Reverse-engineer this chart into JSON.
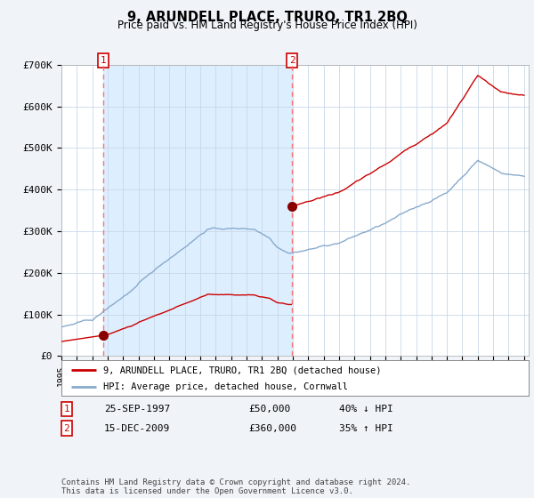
{
  "title": "9, ARUNDELL PLACE, TRURO, TR1 2BQ",
  "subtitle": "Price paid vs. HM Land Registry's House Price Index (HPI)",
  "ylim": [
    0,
    700000
  ],
  "yticks": [
    0,
    100000,
    200000,
    300000,
    400000,
    500000,
    600000,
    700000
  ],
  "ytick_labels": [
    "£0",
    "£100K",
    "£200K",
    "£300K",
    "£400K",
    "£500K",
    "£600K",
    "£700K"
  ],
  "line1_color": "#cc0000",
  "line2_color": "#88aacc",
  "purchase1_date": 1997.73,
  "purchase1_price": 50000,
  "purchase2_date": 2009.96,
  "purchase2_price": 360000,
  "legend_label1": "9, ARUNDELL PLACE, TRURO, TR1 2BQ (detached house)",
  "legend_label2": "HPI: Average price, detached house, Cornwall",
  "table_row1": [
    "1",
    "25-SEP-1997",
    "£50,000",
    "40% ↓ HPI"
  ],
  "table_row2": [
    "2",
    "15-DEC-2009",
    "£360,000",
    "35% ↑ HPI"
  ],
  "footnote": "Contains HM Land Registry data © Crown copyright and database right 2024.\nThis data is licensed under the Open Government Licence v3.0.",
  "bg_color": "#f0f4f8",
  "plot_bg_color": "#ffffff",
  "shade_color": "#ddeeff"
}
